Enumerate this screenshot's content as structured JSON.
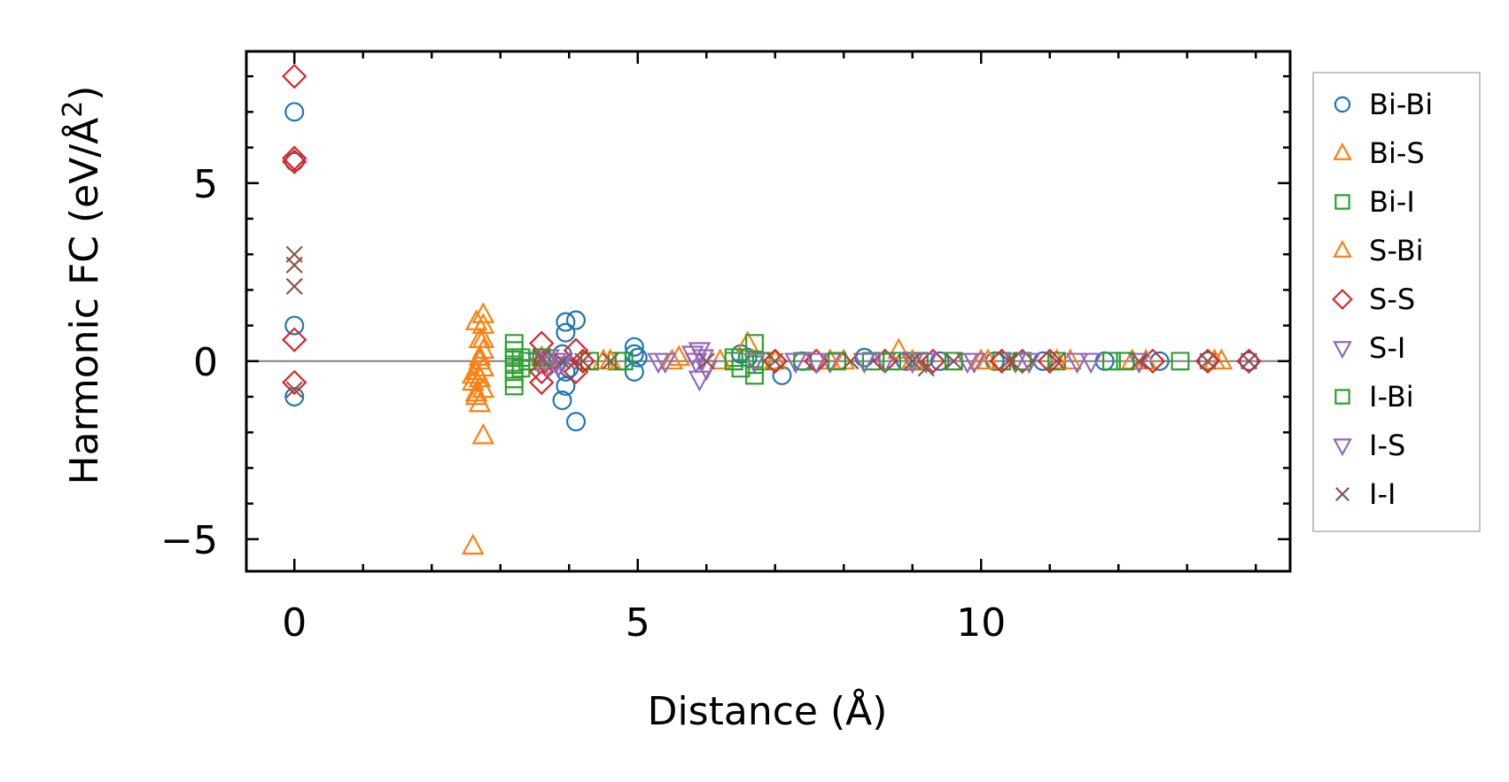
{
  "chart_data": {
    "type": "scatter",
    "xlabel": "Distance (Å)",
    "ylabel_main": "Harmonic FC (eV/Å",
    "ylabel_sup": "2",
    "ylabel_close": ")",
    "xlim": [
      -0.7,
      14.5
    ],
    "ylim": [
      -5.9,
      8.7
    ],
    "xticks": [
      0,
      5,
      10
    ],
    "xtick_labels": [
      "0",
      "5",
      "10"
    ],
    "yticks": [
      -5,
      0,
      5
    ],
    "ytick_labels": [
      "−5",
      "0",
      "5"
    ],
    "x_minor_step": 1,
    "y_minor_step": 1,
    "grid": false,
    "ticks_direction": "in",
    "zero_line": 0,
    "zero_line_color": "#808080",
    "legend_position": "outside-right",
    "series": [
      {
        "name": "Bi-Bi",
        "marker": "circle",
        "color": "#1f77b4",
        "points": [
          [
            0,
            7.0
          ],
          [
            0,
            1.0
          ],
          [
            0,
            -1.0
          ],
          [
            0,
            5.6
          ],
          [
            3.95,
            1.1
          ],
          [
            4.1,
            1.15
          ],
          [
            3.95,
            0.8
          ],
          [
            3.9,
            0.2
          ],
          [
            3.95,
            -0.3
          ],
          [
            3.95,
            -0.7
          ],
          [
            3.9,
            -1.1
          ],
          [
            4.1,
            -1.7
          ],
          [
            4.0,
            -0.2
          ],
          [
            4.95,
            0.4
          ],
          [
            4.95,
            0.2
          ],
          [
            4.95,
            -0.3
          ],
          [
            5.0,
            0.1
          ],
          [
            6.5,
            0.2
          ],
          [
            6.6,
            0.1
          ],
          [
            7.1,
            -0.4
          ],
          [
            7.4,
            0.0
          ],
          [
            8.3,
            0.1
          ],
          [
            8.9,
            0.0
          ],
          [
            9.4,
            0.0
          ],
          [
            10.2,
            0.0
          ],
          [
            10.9,
            0.0
          ],
          [
            11.8,
            0.0
          ],
          [
            12.6,
            0.0
          ],
          [
            13.3,
            0.0
          ],
          [
            13.9,
            0.0
          ]
        ]
      },
      {
        "name": "Bi-S",
        "marker": "triangle-up",
        "color": "#ff7f0e",
        "points": [
          [
            2.6,
            -5.2
          ],
          [
            2.75,
            -2.1
          ],
          [
            2.6,
            -0.6
          ],
          [
            2.65,
            -0.9
          ],
          [
            2.7,
            -1.2
          ],
          [
            2.75,
            -0.8
          ],
          [
            2.65,
            -0.3
          ],
          [
            2.7,
            0.0
          ],
          [
            2.75,
            0.3
          ],
          [
            2.7,
            0.6
          ],
          [
            2.75,
            1.0
          ],
          [
            2.65,
            1.1
          ],
          [
            2.75,
            1.3
          ],
          [
            2.65,
            -1.0
          ],
          [
            2.7,
            -0.5
          ],
          [
            2.75,
            -0.2
          ],
          [
            3.6,
            0.1
          ],
          [
            4.5,
            0.0
          ],
          [
            5.5,
            0.0
          ],
          [
            6.6,
            0.5
          ],
          [
            7.8,
            0.0
          ],
          [
            8.8,
            0.3
          ],
          [
            10.0,
            0.0
          ],
          [
            11.1,
            0.0
          ],
          [
            12.2,
            0.0
          ],
          [
            13.4,
            0.0
          ]
        ]
      },
      {
        "name": "Bi-I",
        "marker": "square",
        "color": "#2ca02c",
        "points": [
          [
            3.2,
            0.5
          ],
          [
            3.2,
            0.3
          ],
          [
            3.2,
            0.1
          ],
          [
            3.2,
            -0.1
          ],
          [
            3.2,
            -0.3
          ],
          [
            3.2,
            -0.5
          ],
          [
            3.2,
            -0.7
          ],
          [
            3.4,
            0.0
          ],
          [
            4.3,
            0.0
          ],
          [
            4.7,
            0.0
          ],
          [
            6.4,
            0.1
          ],
          [
            6.5,
            -0.2
          ],
          [
            6.7,
            0.5
          ],
          [
            6.7,
            -0.4
          ],
          [
            6.8,
            0.0
          ],
          [
            7.4,
            0.0
          ],
          [
            8.4,
            0.0
          ],
          [
            9.1,
            0.0
          ],
          [
            10.3,
            0.0
          ],
          [
            11.1,
            0.0
          ],
          [
            11.9,
            0.0
          ],
          [
            12.9,
            0.0
          ]
        ]
      },
      {
        "name": "S-Bi",
        "marker": "triangle-up",
        "color": "#ff7f0e",
        "points": [
          [
            2.6,
            -0.4
          ],
          [
            2.7,
            0.1
          ],
          [
            2.75,
            0.6
          ],
          [
            3.7,
            0.0
          ],
          [
            4.6,
            0.0
          ],
          [
            5.6,
            0.1
          ],
          [
            6.2,
            0.0
          ],
          [
            7.0,
            0.0
          ],
          [
            8.0,
            0.0
          ],
          [
            9.0,
            0.0
          ],
          [
            10.1,
            0.0
          ],
          [
            11.3,
            0.0
          ],
          [
            12.4,
            0.0
          ],
          [
            13.5,
            0.0
          ]
        ]
      },
      {
        "name": "S-S",
        "marker": "diamond",
        "color": "#d62728",
        "points": [
          [
            0,
            8.0
          ],
          [
            0,
            5.7
          ],
          [
            0,
            5.6
          ],
          [
            0,
            0.6
          ],
          [
            0,
            -0.6
          ],
          [
            3.6,
            0.5
          ],
          [
            3.6,
            -0.3
          ],
          [
            3.6,
            -0.6
          ],
          [
            3.65,
            0.0
          ],
          [
            4.1,
            0.3
          ],
          [
            4.1,
            -0.3
          ],
          [
            4.2,
            0.0
          ],
          [
            7.0,
            0.0
          ],
          [
            7.6,
            0.0
          ],
          [
            8.6,
            0.0
          ],
          [
            9.3,
            0.0
          ],
          [
            10.3,
            0.0
          ],
          [
            10.6,
            0.0
          ],
          [
            11.0,
            0.0
          ],
          [
            12.5,
            0.0
          ],
          [
            13.3,
            0.0
          ],
          [
            13.9,
            0.0
          ]
        ]
      },
      {
        "name": "S-I",
        "marker": "triangle-down",
        "color": "#9467bd",
        "points": [
          [
            3.55,
            0.0
          ],
          [
            3.7,
            0.1
          ],
          [
            3.8,
            0.0
          ],
          [
            3.85,
            -0.1
          ],
          [
            5.4,
            0.0
          ],
          [
            5.8,
            0.2
          ],
          [
            5.9,
            -0.5
          ],
          [
            5.95,
            0.1
          ],
          [
            6.7,
            0.0
          ],
          [
            7.3,
            0.0
          ],
          [
            7.8,
            0.0
          ],
          [
            8.6,
            0.0
          ],
          [
            9.2,
            0.0
          ],
          [
            9.8,
            0.0
          ],
          [
            10.5,
            0.0
          ],
          [
            11.4,
            0.0
          ],
          [
            12.3,
            0.0
          ]
        ]
      },
      {
        "name": "I-Bi",
        "marker": "square",
        "color": "#2ca02c",
        "points": [
          [
            3.3,
            0.1
          ],
          [
            3.3,
            -0.2
          ],
          [
            3.6,
            0.1
          ],
          [
            4.8,
            0.0
          ],
          [
            6.4,
            0.0
          ],
          [
            6.7,
            -0.1
          ],
          [
            7.9,
            0.0
          ],
          [
            8.7,
            0.0
          ],
          [
            9.6,
            0.0
          ],
          [
            10.6,
            0.0
          ],
          [
            12.1,
            0.0
          ]
        ]
      },
      {
        "name": "I-S",
        "marker": "triangle-down",
        "color": "#9467bd",
        "points": [
          [
            3.7,
            -0.1
          ],
          [
            3.9,
            0.0
          ],
          [
            5.3,
            0.0
          ],
          [
            5.85,
            0.0
          ],
          [
            5.9,
            0.3
          ],
          [
            6.0,
            -0.2
          ],
          [
            7.6,
            0.0
          ],
          [
            8.3,
            0.0
          ],
          [
            9.0,
            0.0
          ],
          [
            9.9,
            0.0
          ],
          [
            10.7,
            0.0
          ],
          [
            11.6,
            0.0
          ]
        ]
      },
      {
        "name": "I-I",
        "marker": "x",
        "color": "#8c564b",
        "points": [
          [
            0,
            3.0
          ],
          [
            0,
            2.7
          ],
          [
            0,
            2.1
          ],
          [
            0,
            -0.8
          ],
          [
            3.6,
            0.1
          ],
          [
            3.9,
            0.0
          ],
          [
            4.2,
            0.0
          ],
          [
            4.6,
            0.0
          ],
          [
            6.0,
            0.0
          ],
          [
            7.0,
            0.0
          ],
          [
            8.1,
            0.0
          ],
          [
            9.0,
            0.0
          ],
          [
            9.2,
            -0.2
          ],
          [
            9.6,
            0.0
          ],
          [
            10.4,
            0.0
          ],
          [
            11.1,
            0.0
          ],
          [
            12.3,
            0.0
          ],
          [
            13.3,
            0.0
          ],
          [
            13.9,
            0.0
          ]
        ]
      }
    ]
  }
}
